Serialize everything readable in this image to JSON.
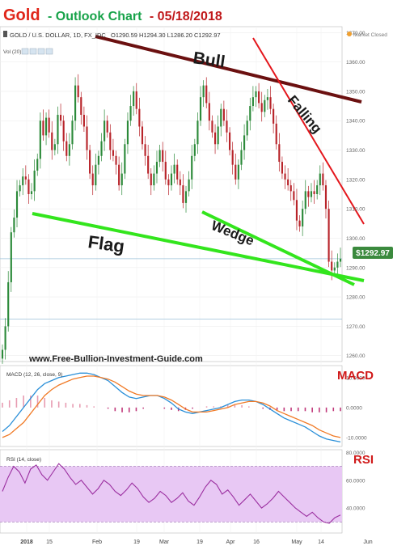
{
  "header": {
    "word": "Gold",
    "subtitle": "- Outlook Chart",
    "date": "- 05/18/2018",
    "word_color": "#e0261a",
    "subtitle_color": "#18a34a",
    "date_color": "#c0181a"
  },
  "toolbar": {
    "symbol": "GOLD / U.S. DOLLAR, 1D, FX_IDC",
    "ohlc": "O1290.59  H1294.30  L1286.20  C1292.97",
    "volume_label": "Vol (20)",
    "market_status": "Market Closed"
  },
  "watermark": "www.Free-Bullion-Investment-Guide.com",
  "annotations": {
    "bull": "Bull",
    "falling": "Falling",
    "wedge": "Wedge",
    "flag": "Flag"
  },
  "price_badge": "$1292.97",
  "chart_data": [
    {
      "type": "candlestick",
      "title": "Gold - Outlook Chart - 05/18/2018",
      "x_ticks": [
        "2018",
        "15",
        "Feb",
        "19",
        "Mar",
        "19",
        "Apr",
        "16",
        "May",
        "14",
        "Jun"
      ],
      "y_ticks": [
        1370,
        1360,
        1350,
        1340,
        1330,
        1320,
        1310,
        1300,
        1290,
        1280,
        1270,
        1260
      ],
      "y_tick_labels": [
        "1370.00",
        "1360.00",
        "1350.00",
        "1340.00",
        "1330.00",
        "1320.00",
        "1310.00",
        "1300.00",
        "1290.00",
        "1280.00",
        "1270.00",
        "1260.00"
      ],
      "ylim": [
        1258,
        1372
      ],
      "last_close": 1292.97,
      "horizontal_levels": [
        1293.0,
        1272.5
      ],
      "closes": [
        1262,
        1270,
        1285,
        1302,
        1307,
        1316,
        1318,
        1321,
        1320,
        1315,
        1316,
        1323,
        1327,
        1340,
        1335,
        1341,
        1336,
        1330,
        1332,
        1342,
        1340,
        1333,
        1328,
        1332,
        1340,
        1352,
        1348,
        1342,
        1338,
        1330,
        1322,
        1318,
        1325,
        1328,
        1333,
        1340,
        1336,
        1330,
        1328,
        1325,
        1318,
        1322,
        1332,
        1340,
        1345,
        1350,
        1344,
        1338,
        1332,
        1328,
        1322,
        1318,
        1322,
        1326,
        1330,
        1326,
        1320,
        1318,
        1322,
        1325,
        1320,
        1318,
        1312,
        1316,
        1320,
        1328,
        1332,
        1340,
        1348,
        1352,
        1346,
        1340,
        1336,
        1332,
        1338,
        1344,
        1340,
        1336,
        1330,
        1325,
        1320,
        1325,
        1330,
        1335,
        1340,
        1345,
        1348,
        1350,
        1346,
        1343,
        1347,
        1348,
        1344,
        1339,
        1332,
        1326,
        1322,
        1320,
        1318,
        1316,
        1313,
        1306,
        1304,
        1310,
        1316,
        1314,
        1316,
        1315,
        1318,
        1322,
        1318,
        1310,
        1292,
        1289,
        1290,
        1292,
        1293
      ],
      "annotations": [
        "Bull",
        "Falling",
        "Wedge",
        "Flag"
      ]
    },
    {
      "type": "line",
      "title": "MACD",
      "legend": "MACD (12, 26, close, 9)",
      "y_ticks": [
        10,
        0,
        -10
      ],
      "y_tick_labels": [
        "10.0000",
        "0.0000",
        "-10.0000"
      ],
      "ylim": [
        -13,
        14
      ],
      "series": [
        {
          "name": "MACD",
          "color": "#2a8fd8",
          "values": [
            -8,
            -6,
            -3,
            0,
            3,
            6,
            8,
            9,
            10,
            10.5,
            11,
            11.5,
            11.5,
            11,
            10,
            9,
            7,
            5,
            3.5,
            3,
            3.5,
            4,
            4,
            3,
            1.5,
            -0.5,
            -1.5,
            -2,
            -1.5,
            -1,
            -0.5,
            0,
            1,
            2,
            2.5,
            2.5,
            2,
            1,
            -0.5,
            -2,
            -3.5,
            -4.5,
            -5.5,
            -6.5,
            -8,
            -9.5,
            -10.5,
            -11,
            -11.5
          ]
        },
        {
          "name": "Signal",
          "color": "#f07a26",
          "values": [
            -10,
            -9,
            -7,
            -5,
            -2,
            1,
            4,
            6,
            7.5,
            8.5,
            9.5,
            10,
            10.5,
            10.5,
            10,
            9.5,
            8.5,
            7,
            5.5,
            4.5,
            4,
            4,
            4,
            3.5,
            2.5,
            1,
            -0.5,
            -1.5,
            -1.5,
            -1.5,
            -1,
            -0.5,
            0,
            1,
            1.5,
            2,
            2,
            1.5,
            0.5,
            -1,
            -2,
            -3,
            -4,
            -5,
            -6,
            -7.5,
            -8.5,
            -9.5,
            -10
          ]
        }
      ]
    },
    {
      "type": "line",
      "title": "RSI",
      "legend": "RSI (14, close)",
      "y_ticks": [
        80,
        60,
        40
      ],
      "y_tick_labels": [
        "80.0000",
        "60.0000",
        "40.0000"
      ],
      "ylim": [
        22,
        82
      ],
      "levels": [
        70,
        30
      ],
      "series": [
        {
          "name": "RSI",
          "color": "#9b2fa0",
          "values": [
            52,
            62,
            70,
            66,
            58,
            68,
            71,
            64,
            60,
            66,
            72,
            68,
            62,
            57,
            60,
            55,
            50,
            54,
            60,
            57,
            52,
            49,
            53,
            58,
            54,
            48,
            44,
            47,
            52,
            49,
            44,
            47,
            51,
            45,
            42,
            48,
            55,
            60,
            57,
            50,
            53,
            48,
            42,
            46,
            50,
            45,
            40,
            43,
            47,
            52,
            48,
            44,
            40,
            37,
            34,
            37,
            33,
            30,
            29,
            33,
            35
          ]
        }
      ]
    }
  ],
  "panel_titles": {
    "macd": "MACD",
    "rsi": "RSI"
  },
  "colors": {
    "bull_line": "#6b1010",
    "falling_line": "#e4161c",
    "green_lines": "#33e51d",
    "up_candle": "#2c8a3a",
    "down_candle": "#b8242a",
    "rsi_band": "#e8c8f4"
  }
}
